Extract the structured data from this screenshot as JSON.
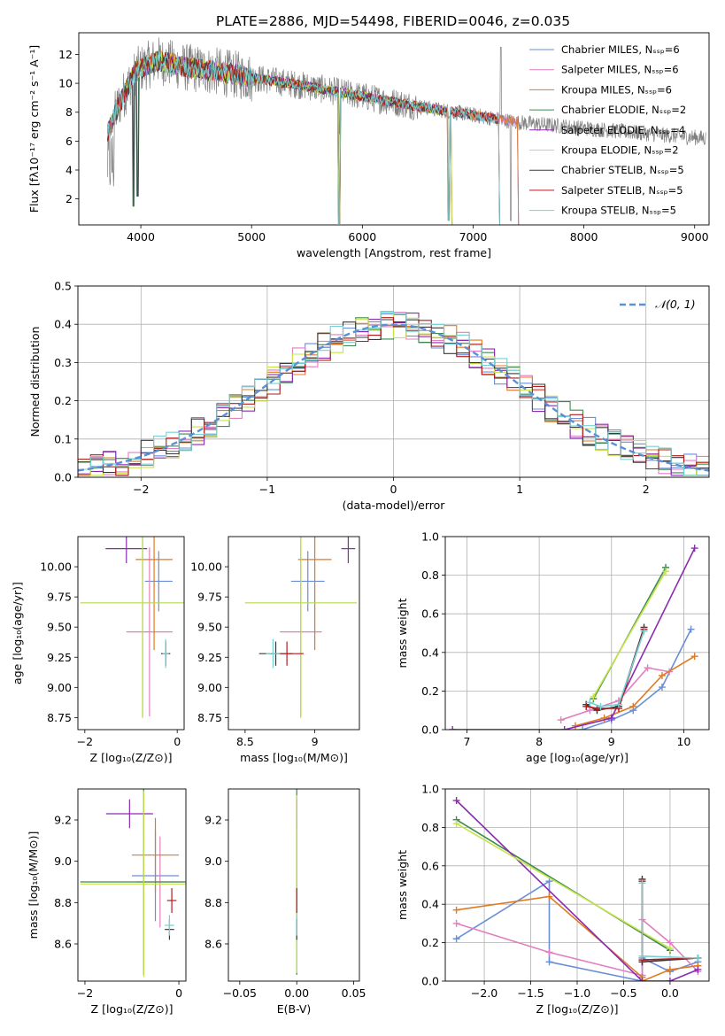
{
  "figure_title": "PLATE=2886, MJD=54498, FIBERID=0046, z=0.035",
  "palette": {
    "chabrier_miles": "#6a8fd6",
    "salpeter_miles": "#e27fbf",
    "kroupa_miles": "#e07a22",
    "chabrier_elodie": "#3d8a4f",
    "salpeter_elodie": "#8a2cb0",
    "kroupa_elodie": "#c6e44a",
    "chabrier_stelib": "#3a3a3a",
    "salpeter_stelib": "#b01c1c",
    "kroupa_stelib": "#74d2d4",
    "data": "#808080",
    "normal": "#5b8fd6",
    "grid": "#b0b0b0"
  },
  "chart_data": [
    {
      "id": "spectrum",
      "type": "line",
      "xlabel": "wavelength [Angstrom, rest frame]",
      "ylabel": "Flux [fλ10⁻¹⁷ erg cm⁻² s⁻¹ A⁻¹]",
      "xlim": [
        3440,
        9130
      ],
      "ylim": [
        0.2,
        13.5
      ],
      "xticks": [
        4000,
        5000,
        6000,
        7000,
        8000,
        9000
      ],
      "yticks": [
        2,
        4,
        6,
        8,
        10,
        12
      ],
      "grid": false,
      "legend_position": "top-right",
      "legend": [
        {
          "label": "Chabrier MILES, Nₛₛₚ=6",
          "color_key": "chabrier_miles"
        },
        {
          "label": "Salpeter MILES, Nₛₛₚ=6",
          "color_key": "salpeter_miles"
        },
        {
          "label": "Kroupa MILES, Nₛₛₚ=6",
          "color_key": "kroupa_miles"
        },
        {
          "label": "Chabrier ELODIE, Nₛₛₚ=2",
          "color_key": "chabrier_elodie"
        },
        {
          "label": "Salpeter ELODIE, Nₛₛₚ=4",
          "color_key": "salpeter_elodie"
        },
        {
          "label": "Kroupa ELODIE, Nₛₛₚ=2",
          "color_key": "kroupa_elodie"
        },
        {
          "label": "Chabrier STELIB, Nₛₛₚ=5",
          "color_key": "chabrier_stelib"
        },
        {
          "label": "Salpeter STELIB, Nₛₛₚ=5",
          "color_key": "salpeter_stelib"
        },
        {
          "label": "Kroupa STELIB, Nₛₛₚ=5",
          "color_key": "kroupa_stelib"
        }
      ],
      "data_range": [
        3700,
        9100
      ],
      "continuum": [
        [
          3700,
          6.5
        ],
        [
          3800,
          8.5
        ],
        [
          3950,
          10.8
        ],
        [
          4150,
          11.6
        ],
        [
          4400,
          11.1
        ],
        [
          4700,
          10.8
        ],
        [
          5000,
          10.4
        ],
        [
          5500,
          9.8
        ],
        [
          6000,
          9.1
        ],
        [
          6500,
          8.4
        ],
        [
          7000,
          7.8
        ],
        [
          7400,
          7.3
        ],
        [
          8000,
          6.9
        ],
        [
          8600,
          6.5
        ],
        [
          9100,
          6.2
        ]
      ],
      "model_cutoffs": {
        "miles": 7400,
        "stelib": 7230,
        "elodie": 6800
      },
      "dips": [
        [
          3935,
          1.5
        ],
        [
          3970,
          2.2
        ],
        [
          5790,
          0.3
        ],
        [
          6780,
          0.5
        ]
      ]
    },
    {
      "id": "residuals",
      "type": "line",
      "xlabel": "(data-model)/error",
      "ylabel": "Normed distribution",
      "xlim": [
        -2.5,
        2.5
      ],
      "ylim": [
        0,
        0.5
      ],
      "xticks": [
        -2,
        -1,
        0,
        1,
        2
      ],
      "yticks": [
        0.0,
        0.1,
        0.2,
        0.3,
        0.4,
        0.5
      ],
      "grid": true,
      "legend_position": "top-right",
      "legend": [
        {
          "label": "𝒩(0, 1)",
          "color_key": "normal"
        }
      ],
      "bin_width": 0.1
    },
    {
      "id": "age_vs_Z",
      "type": "scatter",
      "xlabel": "Z [log₁₀(Z/Z⊙)]",
      "ylabel": "age  [log₁₀(age/yr)]",
      "xlim": [
        -2.15,
        0.15
      ],
      "ylim": [
        8.65,
        10.25
      ],
      "xticks": [
        -2,
        0
      ],
      "yticks": [
        8.75,
        9.0,
        9.25,
        9.5,
        9.75,
        10.0
      ],
      "grid": false,
      "points": [
        {
          "x": -0.4,
          "y": 9.88,
          "xerr": 0.3,
          "yerr": 0.25,
          "color_key": "chabrier_miles"
        },
        {
          "x": -0.6,
          "y": 9.46,
          "xerr": 0.5,
          "yerr": 0.7,
          "color_key": "salpeter_miles"
        },
        {
          "x": -0.5,
          "y": 10.06,
          "xerr": 0.4,
          "yerr": 0.75,
          "color_key": "kroupa_miles"
        },
        {
          "x": -0.75,
          "y": 9.7,
          "xerr": 1.35,
          "yerr": 0.95,
          "color_key": "chabrier_elodie"
        },
        {
          "x": -1.1,
          "y": 10.15,
          "xerr": 0.45,
          "yerr": 0.12,
          "color_key": "salpeter_elodie"
        },
        {
          "x": -0.75,
          "y": 9.7,
          "xerr": 1.35,
          "yerr": 0.95,
          "color_key": "kroupa_elodie"
        },
        {
          "x": -0.25,
          "y": 9.28,
          "xerr": 0.1,
          "yerr": 0.1,
          "color_key": "chabrier_stelib"
        },
        {
          "x": -0.25,
          "y": 9.28,
          "xerr": 0.08,
          "yerr": 0.1,
          "color_key": "salpeter_stelib"
        },
        {
          "x": -0.25,
          "y": 9.28,
          "xerr": 0.07,
          "yerr": 0.12,
          "color_key": "kroupa_stelib"
        }
      ]
    },
    {
      "id": "age_vs_mass",
      "type": "scatter",
      "xlabel": "mass [log₁₀(M/M⊙)]",
      "ylabel": "",
      "xlim": [
        8.38,
        9.32
      ],
      "ylim": [
        8.65,
        10.25
      ],
      "xticks": [
        8.5,
        9.0
      ],
      "yticks": [
        8.75,
        9.0,
        9.25,
        9.5,
        9.75,
        10.0
      ],
      "grid": false,
      "points": [
        {
          "x": 8.95,
          "y": 9.88,
          "xerr": 0.12,
          "yerr": 0.25,
          "color_key": "chabrier_miles"
        },
        {
          "x": 8.9,
          "y": 9.46,
          "xerr": 0.15,
          "yerr": 0.7,
          "color_key": "salpeter_miles"
        },
        {
          "x": 9.0,
          "y": 10.06,
          "xerr": 0.12,
          "yerr": 0.75,
          "color_key": "kroupa_miles"
        },
        {
          "x": 8.9,
          "y": 9.7,
          "xerr": 0.4,
          "yerr": 0.95,
          "color_key": "chabrier_elodie"
        },
        {
          "x": 9.24,
          "y": 10.15,
          "xerr": 0.05,
          "yerr": 0.12,
          "color_key": "salpeter_elodie"
        },
        {
          "x": 8.9,
          "y": 9.7,
          "xerr": 0.4,
          "yerr": 0.95,
          "color_key": "kroupa_elodie"
        },
        {
          "x": 8.72,
          "y": 9.28,
          "xerr": 0.12,
          "yerr": 0.1,
          "color_key": "chabrier_stelib"
        },
        {
          "x": 8.8,
          "y": 9.28,
          "xerr": 0.12,
          "yerr": 0.1,
          "color_key": "salpeter_stelib"
        },
        {
          "x": 8.7,
          "y": 9.28,
          "xerr": 0.05,
          "yerr": 0.12,
          "color_key": "kroupa_stelib"
        }
      ]
    },
    {
      "id": "mw_vs_age",
      "type": "line",
      "xlabel": "age  [log₁₀(age/yr)]",
      "ylabel": "mass weight",
      "xlim": [
        6.7,
        10.35
      ],
      "ylim": [
        0,
        1.0
      ],
      "xticks": [
        7,
        8,
        9,
        10
      ],
      "yticks": [
        0.0,
        0.2,
        0.4,
        0.6,
        0.8,
        1.0
      ],
      "grid": true,
      "series": [
        {
          "color_key": "chabrier_miles",
          "x": [
            8.6,
            9.0,
            9.3,
            9.7,
            10.1
          ],
          "y": [
            0.0,
            0.05,
            0.1,
            0.22,
            0.52
          ]
        },
        {
          "color_key": "salpeter_miles",
          "x": [
            8.3,
            8.7,
            9.1,
            9.5,
            9.8
          ],
          "y": [
            0.05,
            0.1,
            0.15,
            0.32,
            0.3
          ]
        },
        {
          "color_key": "kroupa_miles",
          "x": [
            8.5,
            8.9,
            9.3,
            9.7,
            10.15
          ],
          "y": [
            0.02,
            0.06,
            0.12,
            0.28,
            0.38
          ]
        },
        {
          "color_key": "chabrier_elodie",
          "x": [
            8.75,
            9.75
          ],
          "y": [
            0.16,
            0.84
          ]
        },
        {
          "color_key": "salpeter_elodie",
          "x": [
            6.8,
            8.35,
            9.0,
            10.15
          ],
          "y": [
            0.0,
            0.0,
            0.06,
            0.94
          ]
        },
        {
          "color_key": "kroupa_elodie",
          "x": [
            8.75,
            9.75
          ],
          "y": [
            0.17,
            0.82
          ]
        },
        {
          "color_key": "chabrier_stelib",
          "x": [
            8.65,
            8.8,
            9.1,
            9.45
          ],
          "y": [
            0.13,
            0.1,
            0.12,
            0.53
          ]
        },
        {
          "color_key": "salpeter_stelib",
          "x": [
            8.65,
            8.8,
            9.1,
            9.45
          ],
          "y": [
            0.12,
            0.11,
            0.11,
            0.52
          ]
        },
        {
          "color_key": "kroupa_stelib",
          "x": [
            8.7,
            8.85,
            9.1,
            9.45
          ],
          "y": [
            0.14,
            0.12,
            0.13,
            0.51
          ]
        }
      ]
    },
    {
      "id": "mass_vs_Z",
      "type": "scatter",
      "xlabel": "Z [log₁₀(Z/Z⊙)]",
      "ylabel": "mass [log₁₀(M/M⊙)]",
      "xlim": [
        -2.15,
        0.15
      ],
      "ylim": [
        8.42,
        9.35
      ],
      "xticks": [
        -2,
        0
      ],
      "yticks": [
        8.6,
        8.8,
        9.0,
        9.2
      ],
      "grid": false,
      "points": [
        {
          "x": -0.5,
          "y": 8.93,
          "xerr": 0.5,
          "yerr": 0.22,
          "color_key": "chabrier_miles"
        },
        {
          "x": -0.4,
          "y": 8.9,
          "xerr": 0.5,
          "yerr": 0.22,
          "color_key": "salpeter_miles"
        },
        {
          "x": -0.5,
          "y": 9.03,
          "xerr": 0.5,
          "yerr": 0.18,
          "color_key": "kroupa_miles"
        },
        {
          "x": -0.75,
          "y": 8.9,
          "xerr": 1.35,
          "yerr": 0.45,
          "color_key": "chabrier_elodie"
        },
        {
          "x": -1.05,
          "y": 9.23,
          "xerr": 0.5,
          "yerr": 0.07,
          "color_key": "salpeter_elodie"
        },
        {
          "x": -0.75,
          "y": 8.89,
          "xerr": 1.35,
          "yerr": 0.45,
          "color_key": "kroupa_elodie"
        },
        {
          "x": -0.2,
          "y": 8.67,
          "xerr": 0.1,
          "yerr": 0.05,
          "color_key": "chabrier_stelib"
        },
        {
          "x": -0.15,
          "y": 8.81,
          "xerr": 0.1,
          "yerr": 0.06,
          "color_key": "salpeter_stelib"
        },
        {
          "x": -0.2,
          "y": 8.69,
          "xerr": 0.1,
          "yerr": 0.05,
          "color_key": "kroupa_stelib"
        }
      ]
    },
    {
      "id": "mass_vs_ebv",
      "type": "scatter",
      "xlabel": "E(B-V)",
      "ylabel": "",
      "xlim": [
        -0.06,
        0.055
      ],
      "ylim": [
        8.42,
        9.35
      ],
      "xticks": [
        -0.05,
        0.0,
        0.05
      ],
      "yticks": [
        8.6,
        8.8,
        9.0,
        9.2
      ],
      "grid": false,
      "points": [
        {
          "x": 0.0,
          "y": 8.93,
          "xerr": 0.0,
          "yerr": 0.22,
          "color_key": "chabrier_miles"
        },
        {
          "x": 0.0,
          "y": 8.9,
          "xerr": 0.0,
          "yerr": 0.22,
          "color_key": "salpeter_miles"
        },
        {
          "x": 0.0,
          "y": 9.03,
          "xerr": 0.0,
          "yerr": 0.18,
          "color_key": "kroupa_miles"
        },
        {
          "x": 0.0,
          "y": 8.9,
          "xerr": 0.0,
          "yerr": 0.45,
          "color_key": "chabrier_elodie"
        },
        {
          "x": 0.0,
          "y": 9.23,
          "xerr": 0.0,
          "yerr": 0.07,
          "color_key": "salpeter_elodie"
        },
        {
          "x": 0.0,
          "y": 8.89,
          "xerr": 0.0,
          "yerr": 0.43,
          "color_key": "kroupa_elodie"
        },
        {
          "x": 0.0,
          "y": 8.67,
          "xerr": 0.0,
          "yerr": 0.05,
          "color_key": "chabrier_stelib"
        },
        {
          "x": 0.0,
          "y": 8.81,
          "xerr": 0.0,
          "yerr": 0.06,
          "color_key": "salpeter_stelib"
        },
        {
          "x": 0.0,
          "y": 8.69,
          "xerr": 0.0,
          "yerr": 0.05,
          "color_key": "kroupa_stelib"
        }
      ]
    },
    {
      "id": "mw_vs_Z",
      "type": "line",
      "xlabel": "Z [log₁₀(Z/Z⊙)]",
      "ylabel": "mass weight",
      "xlim": [
        -2.42,
        0.42
      ],
      "ylim": [
        0,
        1.0
      ],
      "xticks": [
        -2.0,
        -1.5,
        -1.0,
        -0.5,
        0.0
      ],
      "xtick_labels": [
        "−2.0",
        "−1.5",
        "−1.0",
        "−0.5",
        "0.0"
      ],
      "yticks": [
        0.0,
        0.2,
        0.4,
        0.6,
        0.8,
        1.0
      ],
      "grid": true,
      "series": [
        {
          "color_key": "chabrier_miles",
          "x": [
            -2.3,
            -1.3,
            -1.3,
            -0.3,
            -0.3,
            0.0,
            0.3
          ],
          "y": [
            0.22,
            0.52,
            0.1,
            0.0,
            0.12,
            0.05,
            0.1
          ]
        },
        {
          "color_key": "salpeter_miles",
          "x": [
            -2.3,
            -1.3,
            -0.3,
            -0.3,
            0.0,
            0.3
          ],
          "y": [
            0.3,
            0.15,
            0.03,
            0.32,
            0.2,
            0.05
          ]
        },
        {
          "color_key": "kroupa_miles",
          "x": [
            -2.3,
            -1.3,
            -0.3,
            -0.3,
            0.0,
            0.3
          ],
          "y": [
            0.37,
            0.44,
            0.02,
            0.0,
            0.06,
            0.08
          ]
        },
        {
          "color_key": "chabrier_elodie",
          "x": [
            -2.3,
            0.0
          ],
          "y": [
            0.84,
            0.16
          ]
        },
        {
          "color_key": "salpeter_elodie",
          "x": [
            -2.3,
            -0.3,
            0.0,
            0.3
          ],
          "y": [
            0.94,
            0.0,
            0.0,
            0.06
          ]
        },
        {
          "color_key": "kroupa_elodie",
          "x": [
            -2.3,
            0.0
          ],
          "y": [
            0.82,
            0.17
          ]
        },
        {
          "color_key": "chabrier_stelib",
          "x": [
            -0.3,
            -0.3,
            0.3
          ],
          "y": [
            0.53,
            0.1,
            0.12
          ]
        },
        {
          "color_key": "salpeter_stelib",
          "x": [
            -0.3,
            -0.3,
            0.3
          ],
          "y": [
            0.52,
            0.11,
            0.12
          ]
        },
        {
          "color_key": "kroupa_stelib",
          "x": [
            -0.3,
            -0.3,
            0.3
          ],
          "y": [
            0.51,
            0.13,
            0.12
          ]
        }
      ]
    }
  ]
}
